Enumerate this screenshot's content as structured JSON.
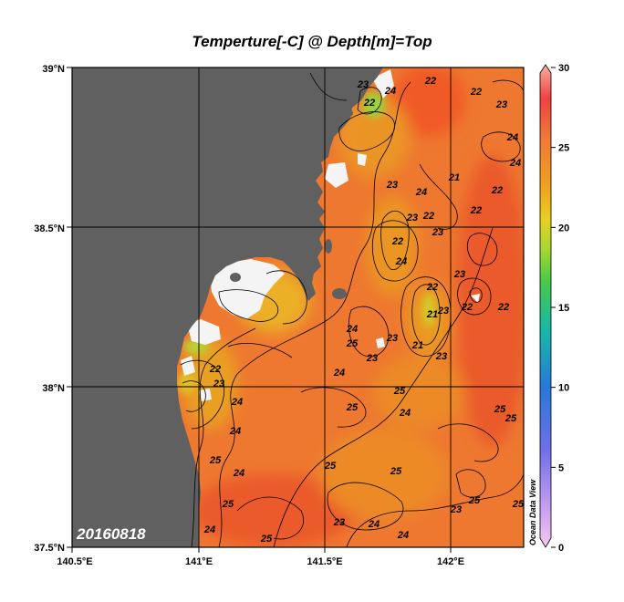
{
  "title": "Temperture[-C] @ Depth[m]=Top",
  "date_stamp": "20160818",
  "watermark": "Ocean Data View",
  "lon_ticks": [
    "140.5°E",
    "141°E",
    "141.5°E",
    "142°E"
  ],
  "lat_ticks": [
    "39°N",
    "38.5°N",
    "38°N",
    "37.5°N"
  ],
  "colorbar": {
    "ticks": [
      "30",
      "25",
      "20",
      "15",
      "10",
      "5",
      "0"
    ],
    "range": [
      0,
      30
    ]
  },
  "contour_labels": [
    "23",
    "22",
    "22",
    "24",
    "22",
    "23",
    "24",
    "24",
    "22",
    "23",
    "24",
    "21",
    "22",
    "22",
    "23",
    "23",
    "22",
    "24",
    "23",
    "22",
    "21",
    "23",
    "22",
    "22",
    "24",
    "25",
    "23",
    "23",
    "21",
    "23",
    "23",
    "22",
    "24",
    "24",
    "25",
    "24",
    "25",
    "25",
    "24",
    "25",
    "24",
    "25",
    "25",
    "25",
    "23",
    "24",
    "23",
    "25",
    "25",
    "24",
    "23",
    "24",
    "25",
    "25"
  ],
  "colors": {
    "land": "#606060",
    "missing": "#f4f4f4",
    "sea_base": "#ee7830",
    "warm": "#ea5a2a",
    "cool": "#e9a020",
    "cold": "#9bd33a"
  }
}
